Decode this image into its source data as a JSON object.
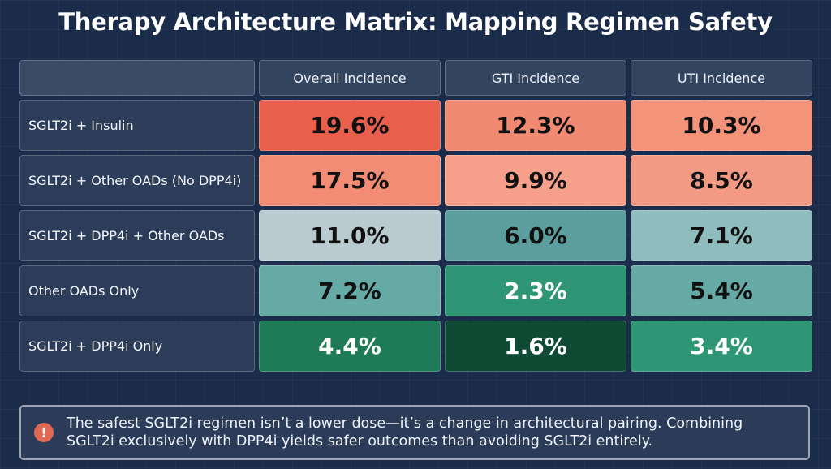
{
  "title": "Therapy Architecture Matrix: Mapping Regimen Safety",
  "chart_data": {
    "type": "heatmap",
    "title": "Therapy Architecture Matrix: Mapping Regimen Safety",
    "columns": [
      "Overall Incidence",
      "GTI Incidence",
      "UTI Incidence"
    ],
    "rows": [
      "SGLT2i + Insulin",
      "SGLT2i + Other OADs (No DPP4i)",
      "SGLT2i + DPP4i + Other OADs",
      "Other OADs Only",
      "SGLT2i + DPP4i Only"
    ],
    "values": [
      [
        19.6,
        12.3,
        10.3
      ],
      [
        17.5,
        9.9,
        8.5
      ],
      [
        11.0,
        6.0,
        7.1
      ],
      [
        7.2,
        2.3,
        5.4
      ],
      [
        4.4,
        1.6,
        3.4
      ]
    ],
    "labels": [
      [
        "19.6%",
        "12.3%",
        "10.3%"
      ],
      [
        "17.5%",
        "9.9%",
        "8.5%"
      ],
      [
        "11.0%",
        "6.0%",
        "7.1%"
      ],
      [
        "7.2%",
        "2.3%",
        "5.4%"
      ],
      [
        "4.4%",
        "1.6%",
        "3.4%"
      ]
    ],
    "cell_colors": [
      [
        "#e8604b",
        "#f08a72",
        "#f2937a"
      ],
      [
        "#f38c74",
        "#f6a08b",
        "#f29a83"
      ],
      [
        "#b9cbcf",
        "#5c9d9d",
        "#8fbcbc"
      ],
      [
        "#66aaa6",
        "#2f9675",
        "#66aaa6"
      ],
      [
        "#1f7a57",
        "#0f4a35",
        "#2f9675"
      ]
    ],
    "light_text": [
      [
        false,
        false,
        false
      ],
      [
        false,
        false,
        false
      ],
      [
        false,
        false,
        false
      ],
      [
        false,
        true,
        false
      ],
      [
        true,
        true,
        true
      ]
    ]
  },
  "callout": {
    "icon": "exclamation-icon",
    "icon_glyph": "!",
    "line1": "The safest SGLT2i regimen isn’t a lower dose—it’s a change in architectural pairing. Combining",
    "line2": "SGLT2i exclusively with DPP4i yields safer outcomes than avoiding SGLT2i entirely."
  }
}
